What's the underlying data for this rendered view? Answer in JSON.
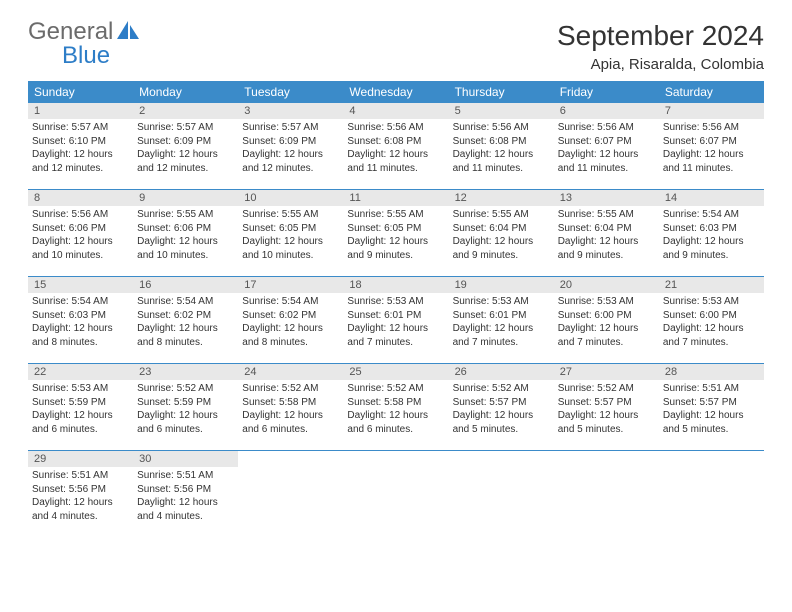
{
  "logo": {
    "text1": "General",
    "text2": "Blue"
  },
  "title": "September 2024",
  "location": "Apia, Risaralda, Colombia",
  "colors": {
    "header_bg": "#3b8bc9",
    "header_text": "#ffffff",
    "daynum_bg": "#e8e8e8",
    "daynum_text": "#555555",
    "body_text": "#333333",
    "logo_gray": "#6b6b6b",
    "logo_blue": "#2d7dc7",
    "border": "#3b8bc9"
  },
  "weekdays": [
    "Sunday",
    "Monday",
    "Tuesday",
    "Wednesday",
    "Thursday",
    "Friday",
    "Saturday"
  ],
  "typography": {
    "title_fontsize": 28,
    "location_fontsize": 15,
    "weekday_fontsize": 12,
    "daynum_fontsize": 11,
    "content_fontsize": 10
  },
  "days": [
    {
      "n": 1,
      "sunrise": "5:57 AM",
      "sunset": "6:10 PM",
      "daylight": "12 hours and 12 minutes."
    },
    {
      "n": 2,
      "sunrise": "5:57 AM",
      "sunset": "6:09 PM",
      "daylight": "12 hours and 12 minutes."
    },
    {
      "n": 3,
      "sunrise": "5:57 AM",
      "sunset": "6:09 PM",
      "daylight": "12 hours and 12 minutes."
    },
    {
      "n": 4,
      "sunrise": "5:56 AM",
      "sunset": "6:08 PM",
      "daylight": "12 hours and 11 minutes."
    },
    {
      "n": 5,
      "sunrise": "5:56 AM",
      "sunset": "6:08 PM",
      "daylight": "12 hours and 11 minutes."
    },
    {
      "n": 6,
      "sunrise": "5:56 AM",
      "sunset": "6:07 PM",
      "daylight": "12 hours and 11 minutes."
    },
    {
      "n": 7,
      "sunrise": "5:56 AM",
      "sunset": "6:07 PM",
      "daylight": "12 hours and 11 minutes."
    },
    {
      "n": 8,
      "sunrise": "5:56 AM",
      "sunset": "6:06 PM",
      "daylight": "12 hours and 10 minutes."
    },
    {
      "n": 9,
      "sunrise": "5:55 AM",
      "sunset": "6:06 PM",
      "daylight": "12 hours and 10 minutes."
    },
    {
      "n": 10,
      "sunrise": "5:55 AM",
      "sunset": "6:05 PM",
      "daylight": "12 hours and 10 minutes."
    },
    {
      "n": 11,
      "sunrise": "5:55 AM",
      "sunset": "6:05 PM",
      "daylight": "12 hours and 9 minutes."
    },
    {
      "n": 12,
      "sunrise": "5:55 AM",
      "sunset": "6:04 PM",
      "daylight": "12 hours and 9 minutes."
    },
    {
      "n": 13,
      "sunrise": "5:55 AM",
      "sunset": "6:04 PM",
      "daylight": "12 hours and 9 minutes."
    },
    {
      "n": 14,
      "sunrise": "5:54 AM",
      "sunset": "6:03 PM",
      "daylight": "12 hours and 9 minutes."
    },
    {
      "n": 15,
      "sunrise": "5:54 AM",
      "sunset": "6:03 PM",
      "daylight": "12 hours and 8 minutes."
    },
    {
      "n": 16,
      "sunrise": "5:54 AM",
      "sunset": "6:02 PM",
      "daylight": "12 hours and 8 minutes."
    },
    {
      "n": 17,
      "sunrise": "5:54 AM",
      "sunset": "6:02 PM",
      "daylight": "12 hours and 8 minutes."
    },
    {
      "n": 18,
      "sunrise": "5:53 AM",
      "sunset": "6:01 PM",
      "daylight": "12 hours and 7 minutes."
    },
    {
      "n": 19,
      "sunrise": "5:53 AM",
      "sunset": "6:01 PM",
      "daylight": "12 hours and 7 minutes."
    },
    {
      "n": 20,
      "sunrise": "5:53 AM",
      "sunset": "6:00 PM",
      "daylight": "12 hours and 7 minutes."
    },
    {
      "n": 21,
      "sunrise": "5:53 AM",
      "sunset": "6:00 PM",
      "daylight": "12 hours and 7 minutes."
    },
    {
      "n": 22,
      "sunrise": "5:53 AM",
      "sunset": "5:59 PM",
      "daylight": "12 hours and 6 minutes."
    },
    {
      "n": 23,
      "sunrise": "5:52 AM",
      "sunset": "5:59 PM",
      "daylight": "12 hours and 6 minutes."
    },
    {
      "n": 24,
      "sunrise": "5:52 AM",
      "sunset": "5:58 PM",
      "daylight": "12 hours and 6 minutes."
    },
    {
      "n": 25,
      "sunrise": "5:52 AM",
      "sunset": "5:58 PM",
      "daylight": "12 hours and 6 minutes."
    },
    {
      "n": 26,
      "sunrise": "5:52 AM",
      "sunset": "5:57 PM",
      "daylight": "12 hours and 5 minutes."
    },
    {
      "n": 27,
      "sunrise": "5:52 AM",
      "sunset": "5:57 PM",
      "daylight": "12 hours and 5 minutes."
    },
    {
      "n": 28,
      "sunrise": "5:51 AM",
      "sunset": "5:57 PM",
      "daylight": "12 hours and 5 minutes."
    },
    {
      "n": 29,
      "sunrise": "5:51 AM",
      "sunset": "5:56 PM",
      "daylight": "12 hours and 4 minutes."
    },
    {
      "n": 30,
      "sunrise": "5:51 AM",
      "sunset": "5:56 PM",
      "daylight": "12 hours and 4 minutes."
    }
  ],
  "labels": {
    "sunrise_prefix": "Sunrise: ",
    "sunset_prefix": "Sunset: ",
    "daylight_prefix": "Daylight: "
  },
  "layout": {
    "trailing_empty_cells": 5
  }
}
